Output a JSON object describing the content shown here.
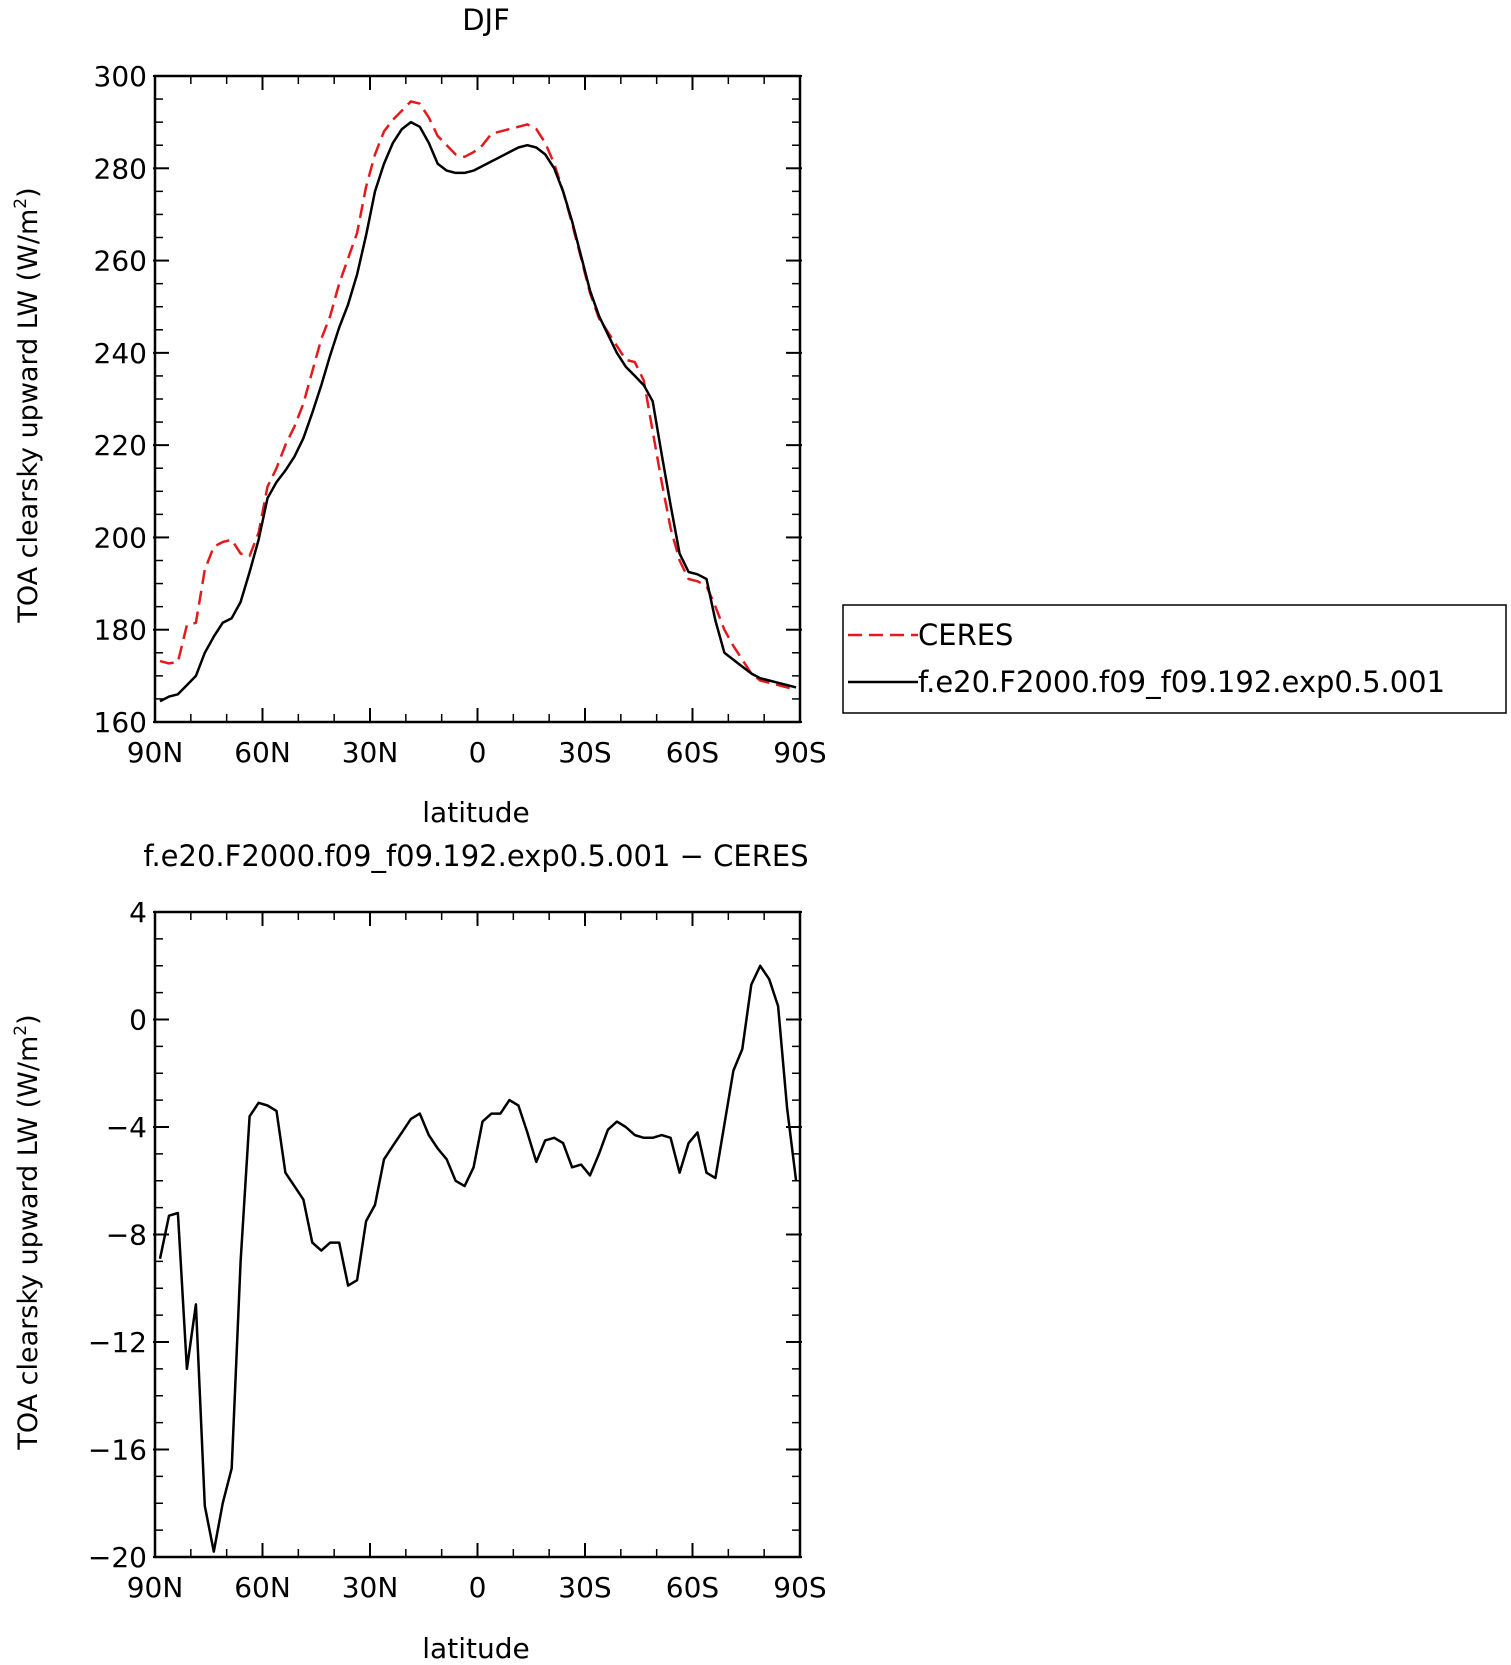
{
  "chart_data": [
    {
      "type": "line",
      "title": "DJF",
      "xlabel": "latitude",
      "ylabel": "TOA clearsky upward LW (W/m",
      "ylabel_sup": "2",
      "ylabel_end": ")",
      "xlim": [
        -90,
        90
      ],
      "ylim": [
        160,
        300
      ],
      "x_ticks": [
        -90,
        -60,
        -30,
        0,
        30,
        60,
        90
      ],
      "x_tick_labels": [
        "90N",
        "60N",
        "30N",
        "0",
        "30S",
        "60S",
        "90S"
      ],
      "y_ticks": [
        160,
        180,
        200,
        220,
        240,
        260,
        280,
        300
      ],
      "y_tick_labels": [
        "160",
        "180",
        "200",
        "220",
        "240",
        "260",
        "280",
        "300"
      ],
      "grid": false,
      "legend_placement": "outside-right",
      "series": [
        {
          "name": "CERES",
          "color": "#e31a1c",
          "dash": "dashed",
          "x": [
            -88.6,
            -86.1,
            -83.6,
            -81.1,
            -78.6,
            -76.1,
            -73.6,
            -71.1,
            -68.6,
            -66.1,
            -63.6,
            -61.1,
            -58.6,
            -56.1,
            -53.6,
            -51.1,
            -48.6,
            -46.1,
            -43.6,
            -41.1,
            -38.6,
            -36.1,
            -33.6,
            -31.1,
            -28.6,
            -26.1,
            -23.6,
            -21.1,
            -18.6,
            -16.1,
            -13.6,
            -11.1,
            -8.6,
            -6.1,
            -3.6,
            -1.1,
            1.4,
            3.9,
            6.4,
            8.9,
            11.4,
            13.9,
            16.4,
            18.9,
            21.4,
            23.9,
            26.4,
            28.9,
            31.4,
            33.9,
            36.4,
            38.9,
            41.4,
            43.9,
            46.4,
            48.9,
            51.4,
            53.9,
            56.4,
            58.9,
            61.4,
            63.9,
            66.4,
            68.9,
            71.4,
            73.9,
            76.4,
            78.9,
            81.4,
            83.9,
            86.4,
            88.9
          ],
          "y": [
            173.2,
            172.7,
            173.0,
            181.0,
            181.5,
            193.0,
            198.0,
            199.0,
            199.5,
            196.5,
            196.0,
            201.0,
            211.0,
            215.0,
            220.0,
            224.0,
            229.0,
            236.0,
            243.0,
            248.0,
            255.0,
            260.5,
            266.0,
            276.0,
            283.0,
            288.0,
            290.5,
            292.5,
            294.5,
            294.0,
            291.0,
            287.0,
            285.0,
            283.0,
            282.5,
            283.5,
            285.0,
            287.5,
            288.0,
            288.5,
            289.0,
            289.5,
            288.5,
            285.5,
            281.0,
            275.0,
            268.0,
            260.5,
            253.0,
            247.5,
            244.5,
            241.5,
            238.5,
            238.0,
            234.0,
            223.0,
            212.0,
            202.0,
            195.0,
            191.0,
            190.5,
            189.5,
            185.0,
            180.0,
            176.5,
            173.5,
            170.5,
            169.0,
            168.5,
            168.0,
            167.5,
            167.0
          ]
        },
        {
          "name": "f.e20.F2000.f09_f09.192.exp0.5.001",
          "color": "#000000",
          "dash": "solid",
          "x": [
            -88.6,
            -86.1,
            -83.6,
            -81.1,
            -78.6,
            -76.1,
            -73.6,
            -71.1,
            -68.6,
            -66.1,
            -63.6,
            -61.1,
            -58.6,
            -56.1,
            -53.6,
            -51.1,
            -48.6,
            -46.1,
            -43.6,
            -41.1,
            -38.6,
            -36.1,
            -33.6,
            -31.1,
            -28.6,
            -26.1,
            -23.6,
            -21.1,
            -18.6,
            -16.1,
            -13.6,
            -11.1,
            -8.6,
            -6.1,
            -3.6,
            -1.1,
            1.4,
            3.9,
            6.4,
            8.9,
            11.4,
            13.9,
            16.4,
            18.9,
            21.4,
            23.9,
            26.4,
            28.9,
            31.4,
            33.9,
            36.4,
            38.9,
            41.4,
            43.9,
            46.4,
            48.9,
            51.4,
            53.9,
            56.4,
            58.9,
            61.4,
            63.9,
            66.4,
            68.9,
            71.4,
            73.9,
            76.4,
            78.9,
            81.4,
            83.9,
            86.4,
            88.9
          ],
          "y": [
            164.5,
            165.5,
            166.0,
            168.0,
            170.0,
            175.0,
            178.5,
            181.5,
            182.5,
            186.0,
            192.5,
            199.5,
            208.5,
            212.0,
            214.5,
            217.5,
            221.5,
            227.0,
            233.0,
            239.5,
            245.5,
            250.5,
            257.0,
            265.5,
            275.0,
            281.0,
            285.5,
            288.5,
            290.0,
            289.0,
            285.5,
            281.0,
            279.5,
            279.0,
            279.0,
            279.5,
            280.5,
            281.5,
            282.5,
            283.5,
            284.5,
            285.0,
            284.5,
            283.0,
            280.0,
            275.0,
            268.5,
            261.0,
            253.5,
            248.0,
            244.0,
            240.0,
            237.0,
            235.0,
            233.0,
            229.5,
            218.0,
            207.0,
            196.5,
            192.5,
            192.0,
            191.0,
            182.0,
            175.0,
            173.5,
            172.0,
            170.5,
            169.5,
            169.0,
            168.5,
            168.0,
            167.5
          ]
        }
      ]
    },
    {
      "type": "line",
      "title": "f.e20.F2000.f09_f09.192.exp0.5.001 − CERES",
      "xlabel": "latitude",
      "ylabel": "TOA clearsky upward LW (W/m",
      "ylabel_sup": "2",
      "ylabel_end": ")",
      "xlim": [
        -90,
        90
      ],
      "ylim": [
        -20,
        4
      ],
      "x_ticks": [
        -90,
        -60,
        -30,
        0,
        30,
        60,
        90
      ],
      "x_tick_labels": [
        "90N",
        "60N",
        "30N",
        "0",
        "30S",
        "60S",
        "90S"
      ],
      "y_ticks": [
        -20,
        -16,
        -12,
        -8,
        -4,
        0,
        4
      ],
      "y_tick_labels": [
        "−20",
        "−16",
        "−12",
        "−8",
        "−4",
        "0",
        "4"
      ],
      "grid": false,
      "series": [
        {
          "color": "#000000",
          "dash": "solid",
          "x": [
            -88.6,
            -86.1,
            -83.6,
            -81.1,
            -78.6,
            -76.1,
            -73.6,
            -71.1,
            -68.6,
            -66.1,
            -63.6,
            -61.1,
            -58.6,
            -56.1,
            -53.6,
            -51.1,
            -48.6,
            -46.1,
            -43.6,
            -41.1,
            -38.6,
            -36.1,
            -33.6,
            -31.1,
            -28.6,
            -26.1,
            -23.6,
            -21.1,
            -18.6,
            -16.1,
            -13.6,
            -11.1,
            -8.6,
            -6.1,
            -3.6,
            -1.1,
            1.4,
            3.9,
            6.4,
            8.9,
            11.4,
            13.9,
            16.4,
            18.9,
            21.4,
            23.9,
            26.4,
            28.9,
            31.4,
            33.9,
            36.4,
            38.9,
            41.4,
            43.9,
            46.4,
            48.9,
            51.4,
            53.9,
            56.4,
            58.9,
            61.4,
            63.9,
            66.4,
            68.9,
            71.4,
            73.9,
            76.4,
            78.9,
            81.4,
            83.9,
            86.4,
            88.9
          ],
          "y": [
            -8.9,
            -7.3,
            -7.2,
            -13.0,
            -10.6,
            -18.1,
            -19.8,
            -18.0,
            -16.7,
            -9.0,
            -3.6,
            -3.1,
            -3.2,
            -3.4,
            -5.7,
            -6.2,
            -6.7,
            -8.3,
            -8.6,
            -8.3,
            -8.3,
            -9.9,
            -9.7,
            -7.5,
            -6.9,
            -5.2,
            -4.7,
            -4.2,
            -3.7,
            -3.5,
            -4.3,
            -4.8,
            -5.2,
            -6.0,
            -6.2,
            -5.5,
            -3.8,
            -3.5,
            -3.5,
            -3.0,
            -3.2,
            -4.2,
            -5.3,
            -4.5,
            -4.4,
            -4.6,
            -5.5,
            -5.4,
            -5.8,
            -5.0,
            -4.1,
            -3.8,
            -4.0,
            -4.3,
            -4.4,
            -4.4,
            -4.3,
            -4.4,
            -5.7,
            -4.6,
            -4.2,
            -5.7,
            -5.9,
            -3.9,
            -1.9,
            -1.1,
            1.3,
            2.0,
            1.5,
            0.5,
            -3.3,
            -6.0
          ]
        }
      ]
    }
  ]
}
